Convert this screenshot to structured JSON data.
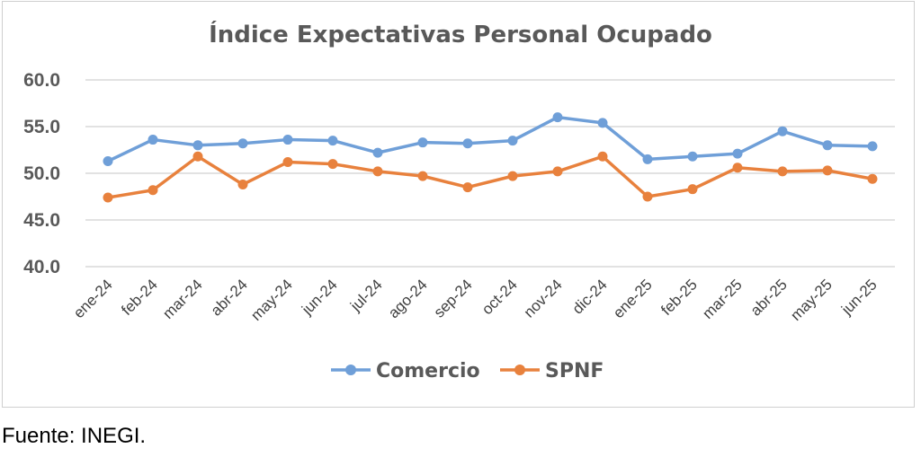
{
  "chart_data": {
    "type": "line",
    "title": "Índice Expectativas Personal Ocupado",
    "categories": [
      "ene-24",
      "feb-24",
      "mar-24",
      "abr-24",
      "may-24",
      "jun-24",
      "jul-24",
      "ago-24",
      "sep-24",
      "oct-24",
      "nov-24",
      "dic-24",
      "ene-25",
      "feb-25",
      "mar-25",
      "abr-25",
      "may-25",
      "jun-25"
    ],
    "series": [
      {
        "name": "Comercio",
        "color": "#6f9fd8",
        "values": [
          51.3,
          53.6,
          53.0,
          53.2,
          53.6,
          53.5,
          52.2,
          53.3,
          53.2,
          53.5,
          56.0,
          55.4,
          51.5,
          51.8,
          52.1,
          54.5,
          53.0,
          52.9
        ]
      },
      {
        "name": "SPNF",
        "color": "#e8813d",
        "values": [
          47.4,
          48.2,
          51.8,
          48.8,
          51.2,
          51.0,
          50.2,
          49.7,
          48.5,
          49.7,
          50.2,
          51.8,
          47.5,
          48.3,
          50.6,
          50.2,
          50.3,
          49.4
        ]
      }
    ],
    "ylim": [
      40,
      60
    ],
    "yticks": [
      "60.0",
      "55.0",
      "50.0",
      "45.0",
      "40.0"
    ],
    "grid": true,
    "legend_position": "bottom"
  },
  "source": "Fuente: INEGI."
}
